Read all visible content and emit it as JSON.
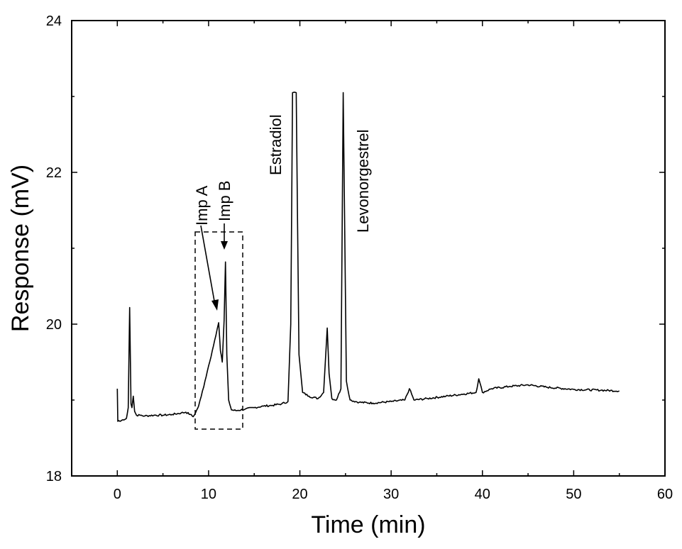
{
  "chart_data": {
    "type": "line",
    "title": "",
    "xlabel": "Time (min)",
    "ylabel": "Response (mV)",
    "xlim": [
      -5,
      60
    ],
    "ylim": [
      18,
      24
    ],
    "x_ticks": [
      0,
      10,
      20,
      30,
      40,
      50,
      60
    ],
    "x_tick_labels": [
      "0",
      "10",
      "20",
      "30",
      "40",
      "50",
      "60"
    ],
    "y_ticks": [
      18,
      20,
      22,
      24
    ],
    "y_tick_labels": [
      "18",
      "20",
      "22",
      "24"
    ],
    "grid": false,
    "series": [
      {
        "x": [
          0,
          0.05,
          0.15,
          0.3,
          0.6,
          1.0,
          1.2,
          1.35,
          1.5,
          1.6,
          1.75,
          1.9,
          2.1,
          2.5,
          3,
          4,
          5,
          6,
          7,
          7.5,
          8,
          8.3,
          8.6,
          8.9,
          9.2,
          9.6,
          10,
          10.4,
          10.8,
          11.1,
          11.3,
          11.5,
          11.7,
          11.85,
          12.0,
          12.2,
          12.5,
          13,
          14,
          15,
          16,
          17,
          18,
          18.7,
          19.0,
          19.2,
          19.6,
          19.9,
          20.3,
          21,
          22,
          22.6,
          23.0,
          23.2,
          23.5,
          24,
          24.5,
          24.75,
          25.1,
          25.5,
          26.5,
          28,
          30,
          31.5,
          32.0,
          32.5,
          34,
          36,
          38,
          39.3,
          39.6,
          40.0,
          41,
          43,
          45,
          47,
          50,
          53,
          55
        ],
        "y": [
          19.15,
          18.72,
          18.73,
          18.72,
          18.74,
          18.76,
          18.9,
          20.22,
          18.95,
          18.9,
          19.05,
          18.85,
          18.8,
          18.8,
          18.79,
          18.8,
          18.8,
          18.81,
          18.83,
          18.84,
          18.81,
          18.78,
          18.84,
          18.92,
          19.05,
          19.25,
          19.45,
          19.65,
          19.85,
          20.02,
          19.65,
          19.5,
          20.05,
          20.82,
          19.6,
          19.0,
          18.87,
          18.86,
          18.88,
          18.9,
          18.92,
          18.93,
          18.95,
          18.98,
          20.0,
          23.05,
          23.05,
          19.6,
          19.1,
          19.05,
          19.02,
          19.1,
          19.95,
          19.35,
          19.02,
          19.0,
          19.15,
          23.05,
          19.25,
          19.0,
          18.97,
          18.96,
          18.98,
          19.0,
          19.15,
          19.0,
          19.02,
          19.05,
          19.08,
          19.1,
          19.28,
          19.1,
          19.15,
          19.18,
          19.2,
          19.17,
          19.14,
          19.13,
          19.12
        ]
      }
    ],
    "annotations": [
      {
        "text": "Imp A"
      },
      {
        "text": "Imp B"
      },
      {
        "text": "Estradiol"
      },
      {
        "text": "Levonorgestrel"
      }
    ]
  }
}
